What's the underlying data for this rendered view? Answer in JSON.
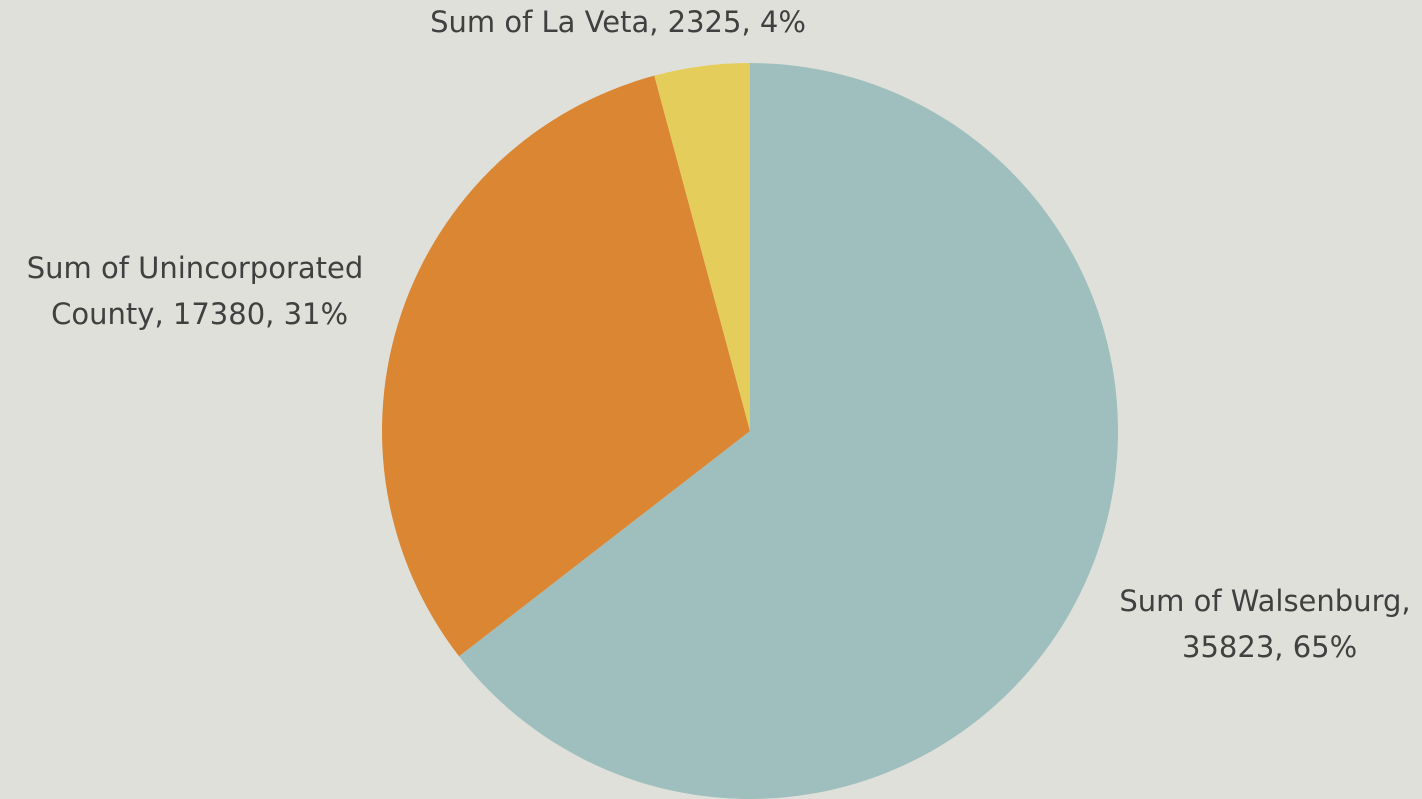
{
  "chart_data": {
    "type": "pie",
    "values": [
      35823,
      17380,
      2325
    ],
    "value_labels": [
      "Sum of Walsenburg, 35823, 65%",
      "Sum of Unincorporated County, 17380, 31%",
      "Sum of La Veta, 2325, 4%"
    ],
    "colors": [
      "#9fbfbe",
      "#db8632",
      "#e4cd5a"
    ]
  }
}
